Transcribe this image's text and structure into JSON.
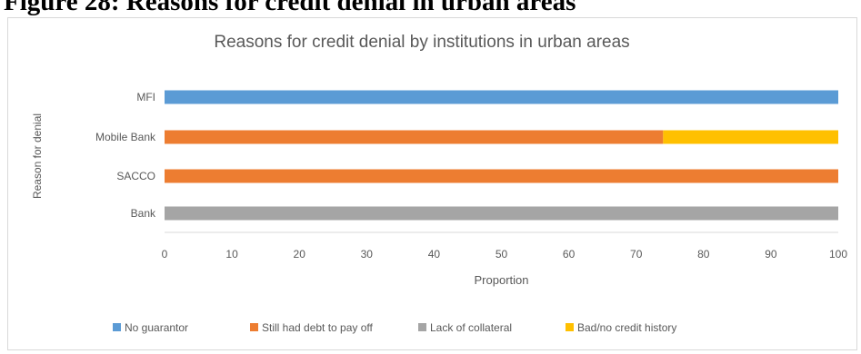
{
  "figure_caption": "Figure 28: Reasons for credit denial in urban areas",
  "chart_data": {
    "type": "bar",
    "orientation": "horizontal",
    "stacked": true,
    "title": "Reasons for credit denial by institutions in urban areas",
    "xlabel": "Proportion",
    "ylabel": "Reason for denial",
    "categories": [
      "MFI",
      "Mobile Bank",
      "SACCO",
      "Bank"
    ],
    "xlim": [
      0,
      100
    ],
    "xticks": [
      "0",
      "10",
      "20",
      "30",
      "40",
      "50",
      "60",
      "70",
      "80",
      "90",
      "100"
    ],
    "grid": false,
    "legend_position": "bottom",
    "series": [
      {
        "name": "No guarantor",
        "color": "#5b9bd5",
        "values": [
          100,
          0,
          0,
          0
        ]
      },
      {
        "name": "Still had debt to pay off",
        "color": "#ed7d31",
        "values": [
          0,
          74,
          100,
          0
        ]
      },
      {
        "name": "Lack of collateral",
        "color": "#a5a5a5",
        "values": [
          0,
          0,
          0,
          100
        ]
      },
      {
        "name": "Bad/no credit history",
        "color": "#ffc000",
        "values": [
          0,
          26,
          0,
          0
        ]
      }
    ]
  }
}
